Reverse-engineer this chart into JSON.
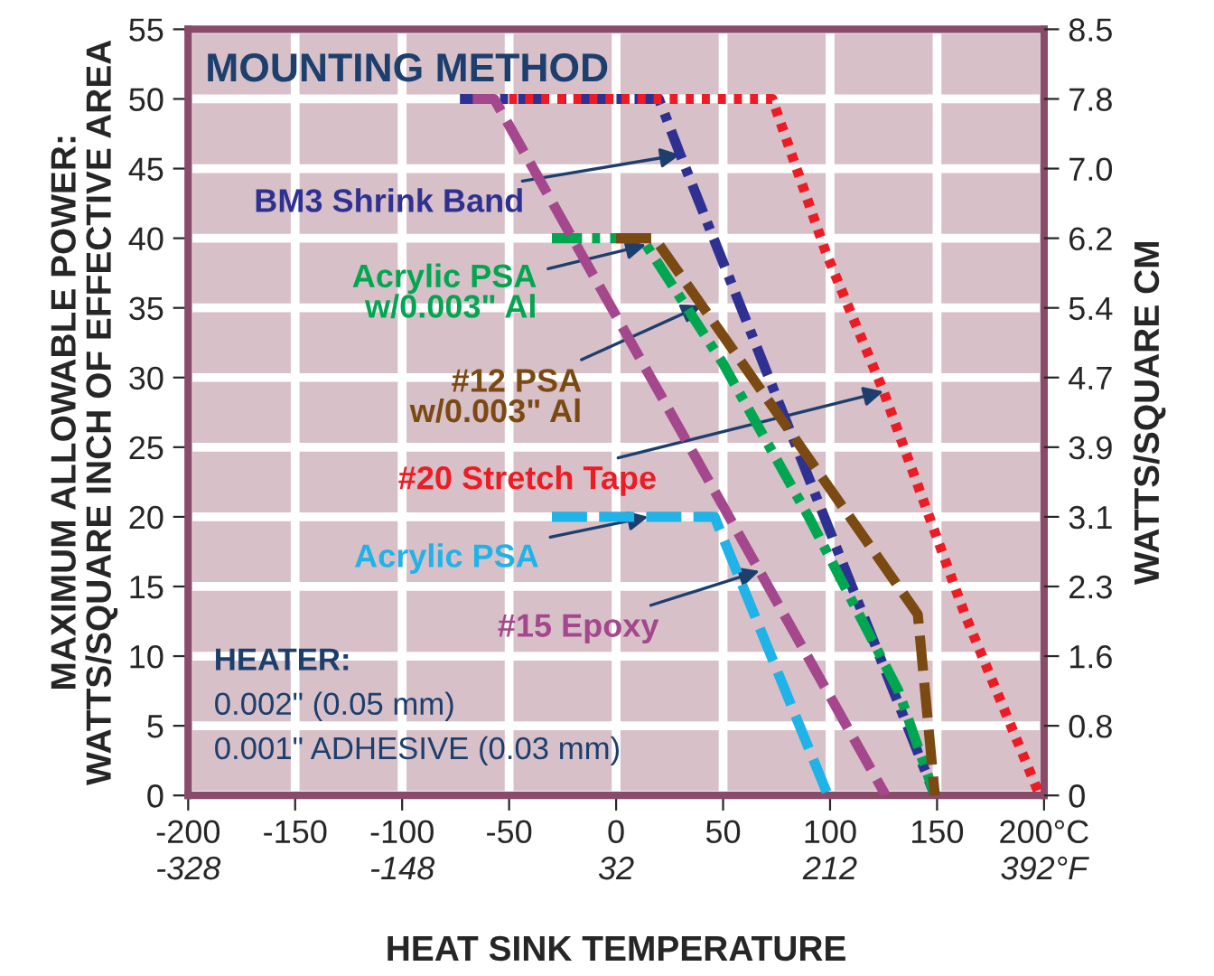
{
  "chart_data": {
    "type": "line",
    "title": "MOUNTING METHOD",
    "xlabel": "HEAT SINK TEMPERATURE",
    "ylabel": "MAXIMUM ALLOWABLE POWER:\nWATTS/SQUARE INCH OF EFFECTIVE AREA",
    "y2label": "WATTS/SQUARE CM",
    "xlim": [
      -200,
      200
    ],
    "xticks": [
      -200,
      -150,
      -100,
      -50,
      0,
      50,
      100,
      150,
      {
        "value": 200,
        "label": "200°C"
      }
    ],
    "x2lim": [
      -328,
      392
    ],
    "x2ticks": [
      -328,
      -148,
      32,
      212,
      {
        "value": 392,
        "label": "392°F"
      }
    ],
    "ylim": [
      0,
      55
    ],
    "yticks": [
      0,
      5,
      10,
      15,
      20,
      25,
      30,
      35,
      40,
      45,
      50,
      55
    ],
    "y2lim": [
      0,
      8.525
    ],
    "y2ticks": [
      0,
      {
        "value": 0.775,
        "label": "0.8"
      },
      {
        "value": 1.55,
        "label": "1.6"
      },
      {
        "value": 2.325,
        "label": "2.3"
      },
      3.1,
      {
        "value": 3.875,
        "label": "3.9"
      },
      {
        "value": 4.65,
        "label": "4.7"
      },
      {
        "value": 5.425,
        "label": "5.4"
      },
      6.2,
      {
        "value": 6.975,
        "label": "7.0"
      },
      {
        "value": 7.75,
        "label": "7.8"
      },
      {
        "value": 8.525,
        "label": "8.5"
      }
    ],
    "grid": true,
    "legend": false,
    "marker": "none",
    "series": [
      {
        "name": "#20 Stretch Tape",
        "color": "#ed1c24",
        "line_style": "dotted",
        "x": [
          -50,
          73,
          98,
          125,
          163,
          198
        ],
        "values": [
          50,
          50,
          39,
          29,
          13,
          0
        ]
      },
      {
        "name": "BM3 Shrink Band",
        "color": "#2e3192",
        "line_style": "dashdot",
        "x": [
          -73,
          20,
          30,
          149
        ],
        "values": [
          50,
          50,
          46,
          0
        ]
      },
      {
        "name": "#15 Epoxy",
        "color": "#a4478c",
        "line_style": "dashed",
        "x": [
          -67,
          -57,
          126
        ],
        "values": [
          50,
          50,
          0
        ]
      },
      {
        "name": "Acrylic PSA\nw/0.003\" Al",
        "color": "#00a650",
        "line_style": "dashdot",
        "x": [
          -30,
          12,
          50,
          90,
          132,
          149
        ],
        "values": [
          40,
          40,
          31,
          20,
          7.5,
          0
        ]
      },
      {
        "name": "#12 PSA\nw/0.003\" Al",
        "color": "#7b4a12",
        "line_style": "dashed",
        "x": [
          0,
          18,
          50,
          141,
          149
        ],
        "values": [
          40,
          40,
          33,
          13,
          0
        ]
      },
      {
        "name": "Acrylic PSA",
        "color": "#1fb3e8",
        "line_style": "dashed",
        "x": [
          -30,
          46,
          99
        ],
        "values": [
          20,
          20,
          0
        ]
      }
    ],
    "annotations": [
      "HEATER:",
      "0.002\" (0.05 mm)",
      "0.001\" ADHESIVE (0.03 mm)"
    ]
  }
}
